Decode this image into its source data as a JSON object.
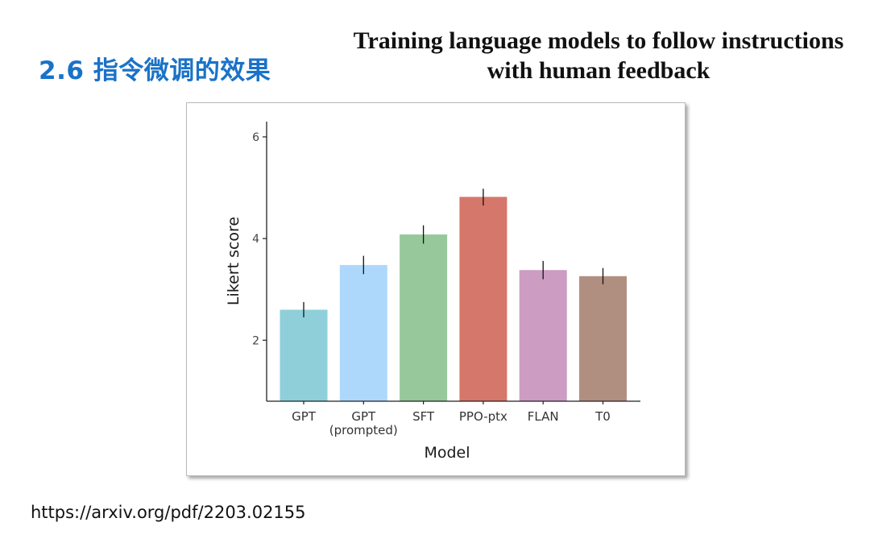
{
  "slide": {
    "heading": "2.6 指令微调的效果",
    "paper_title_line1": "Training language models to follow instructions",
    "paper_title_line2": "with human feedback",
    "source_url": "https://arxiv.org/pdf/2203.02155"
  },
  "chart_data": {
    "type": "bar",
    "title": "",
    "xlabel": "Model",
    "ylabel": "Likert score",
    "ylim": [
      0.8,
      6.3
    ],
    "yticks": [
      2,
      4,
      6
    ],
    "grid": false,
    "legend": "none",
    "categories": [
      {
        "label": "GPT",
        "sublabel": ""
      },
      {
        "label": "GPT",
        "sublabel": "(prompted)"
      },
      {
        "label": "SFT",
        "sublabel": ""
      },
      {
        "label": "PPO-ptx",
        "sublabel": ""
      },
      {
        "label": "FLAN",
        "sublabel": ""
      },
      {
        "label": "T0",
        "sublabel": ""
      }
    ],
    "values": [
      2.6,
      3.48,
      4.08,
      4.82,
      3.38,
      3.26
    ],
    "error_low": [
      2.45,
      3.3,
      3.9,
      4.65,
      3.2,
      3.1
    ],
    "error_high": [
      2.75,
      3.66,
      4.26,
      4.98,
      3.56,
      3.42
    ],
    "colors": [
      "#8ecfda",
      "#aed8fb",
      "#96c89b",
      "#d5776a",
      "#cd9cc2",
      "#b18f80"
    ]
  }
}
